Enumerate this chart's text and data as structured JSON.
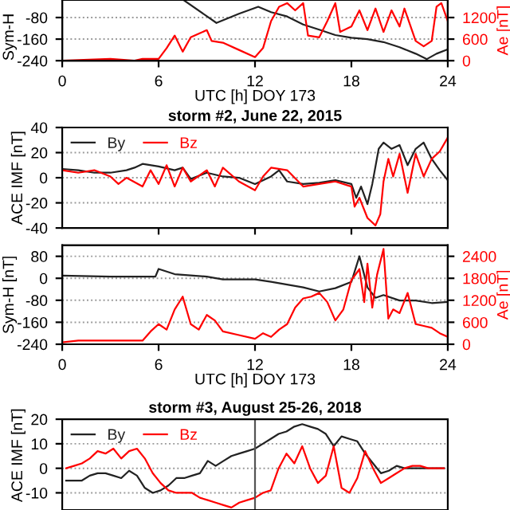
{
  "chart_data": [
    {
      "type": "line",
      "xlabel": "UTC [h] DOY 173",
      "ylabel": "Sym-H",
      "y2label": "Ae [nT]",
      "xlim": [
        0,
        24
      ],
      "xticks": [
        0,
        6,
        12,
        18,
        24
      ],
      "ylim": [
        -240,
        -15
      ],
      "yticks": [
        -240,
        -160,
        -80
      ],
      "y2lim": [
        0,
        1687.5
      ],
      "y2ticks": [
        0,
        600,
        1200
      ],
      "grid": "y",
      "legend": false,
      "series": [
        {
          "color": "#222222",
          "x": [
            7.6,
            9.6,
            11,
            12.2,
            13,
            14,
            15,
            16,
            17,
            18,
            19,
            20,
            21,
            22,
            22.7,
            23.3,
            24
          ],
          "values": [
            -17,
            -100,
            -66,
            -40,
            -60,
            -76,
            -106,
            -125,
            -145,
            -155,
            -160,
            -171,
            -190,
            -214,
            -234,
            -214,
            -198
          ]
        },
        {
          "color": "#ff0000",
          "axis": "y2",
          "x": [
            0,
            3,
            4.5,
            5,
            6,
            6.5,
            7,
            7.5,
            8,
            8.5,
            9,
            9.3,
            10,
            11,
            12,
            12.5,
            13,
            13.5,
            14,
            14.5,
            15,
            15.3,
            16,
            16.5,
            17,
            17.3,
            18,
            18.5,
            19,
            19.5,
            20,
            20.5,
            21,
            21.3,
            22,
            22.5,
            23,
            23.3,
            23.6,
            24
          ],
          "values": [
            0,
            50,
            0,
            50,
            50,
            350,
            700,
            250,
            650,
            750,
            850,
            550,
            500,
            300,
            100,
            350,
            1100,
            1500,
            1600,
            1400,
            1600,
            700,
            650,
            1100,
            1600,
            800,
            950,
            1400,
            850,
            1450,
            800,
            1400,
            950,
            1450,
            550,
            400,
            550,
            1500,
            1600,
            1100
          ]
        }
      ]
    },
    {
      "type": "line",
      "title": "storm #2, June 22, 2015",
      "ylabel": "ACE IMF [nT]",
      "xlim": [
        0,
        24
      ],
      "xticks": [
        {
          "value": 6,
          "label": null
        },
        {
          "value": 12,
          "label": null
        },
        {
          "value": 18,
          "label": null
        }
      ],
      "ylim": [
        -40,
        40
      ],
      "yticks": [
        -40,
        -20,
        0,
        20,
        40
      ],
      "tick_labels": "y",
      "grid": "y",
      "legend": "top left",
      "series": [
        {
          "name": "By",
          "color": "#222222",
          "x": [
            0,
            1,
            2,
            3,
            4,
            4.5,
            5,
            6,
            7,
            7.5,
            8,
            9,
            10,
            11,
            12,
            13,
            13.5,
            14,
            15,
            16,
            17,
            18,
            18.3,
            18.6,
            19,
            19.3,
            19.7,
            20,
            20.5,
            21,
            21.5,
            22,
            22.5,
            23,
            23.5,
            24
          ],
          "values": [
            7,
            6,
            4,
            4,
            6,
            8,
            11,
            9,
            6,
            8,
            -1,
            4,
            1,
            0,
            -5,
            1,
            6,
            -3,
            -5,
            -4,
            -2,
            -5,
            -16,
            -7,
            -21,
            -5,
            23,
            28,
            23,
            26,
            10,
            23,
            28,
            15,
            6,
            -2
          ]
        },
        {
          "name": "Bz",
          "color": "#ff0000",
          "x": [
            0,
            1,
            2,
            3,
            3.5,
            4,
            5,
            5.5,
            6,
            6.5,
            7,
            7.5,
            8,
            9,
            9.5,
            10,
            11,
            12,
            12.5,
            13,
            14,
            15,
            16,
            17,
            18,
            18.2,
            18.5,
            19,
            19.5,
            19.8,
            20,
            20.3,
            20.6,
            21,
            21.5,
            22,
            22.5,
            23,
            23.5,
            24
          ],
          "values": [
            6,
            4,
            6,
            1,
            -5,
            0,
            -7,
            6,
            -5,
            10,
            -7,
            8,
            -3,
            6,
            -7,
            8,
            -3,
            -10,
            1,
            8,
            6,
            -7,
            -5,
            -3,
            -7,
            -23,
            -16,
            -32,
            -38,
            -29,
            -3,
            15,
            1,
            19,
            -12,
            19,
            1,
            15,
            21,
            32
          ]
        }
      ]
    },
    {
      "type": "line",
      "xlabel": "UTC [h] DOY 173",
      "ylabel": "Sym-H [nT]",
      "y2label": "Ae [nT]",
      "xlim": [
        0,
        24
      ],
      "xticks": [
        0,
        6,
        12,
        18,
        24
      ],
      "ylim": [
        -240,
        120
      ],
      "yticks": [
        -240,
        -160,
        -80,
        0,
        80
      ],
      "y2lim": [
        0,
        2700
      ],
      "y2ticks": [
        0,
        600,
        1200,
        1800,
        2400
      ],
      "grid": "y",
      "legend": false,
      "series": [
        {
          "color": "#222222",
          "x": [
            0,
            3,
            5.8,
            6,
            7,
            9,
            10,
            12,
            13,
            14,
            15,
            16,
            17,
            18,
            18.5,
            19,
            19.5,
            20,
            21,
            22,
            23,
            24
          ],
          "values": [
            10,
            6,
            6,
            34,
            15,
            6,
            -4,
            -4,
            -13,
            -23,
            -33,
            -48,
            -36,
            -13,
            80,
            -33,
            -71,
            -61,
            -81,
            -81,
            -90,
            -86
          ]
        },
        {
          "color": "#ff0000",
          "axis": "y2",
          "x": [
            0,
            1,
            3,
            5,
            5.5,
            6,
            6.5,
            7,
            7.5,
            8,
            8.5,
            9,
            9.5,
            10,
            11,
            12,
            12.5,
            13,
            13.5,
            14,
            14.5,
            15,
            15.5,
            16,
            16.5,
            17,
            17.5,
            18,
            18.5,
            18.8,
            19,
            19.3,
            19.6,
            20,
            20.3,
            20.6,
            21,
            21.5,
            22,
            22.5,
            23,
            23.5,
            24
          ],
          "values": [
            50,
            100,
            100,
            100,
            350,
            550,
            400,
            950,
            1300,
            550,
            400,
            800,
            650,
            350,
            250,
            150,
            300,
            200,
            400,
            550,
            1000,
            1250,
            1300,
            1400,
            1150,
            650,
            950,
            1750,
            2050,
            1150,
            2200,
            1000,
            1900,
            2600,
            700,
            950,
            850,
            1400,
            550,
            500,
            450,
            300,
            200
          ]
        }
      ]
    },
    {
      "type": "line",
      "title": "storm #3, August 25-26, 2018",
      "ylabel": "ACE IMF [nT]",
      "categories": [
        null,
        null,
        null,
        null,
        null,
        null,
        null,
        null,
        null,
        null,
        null,
        null,
        null,
        null,
        null,
        null,
        null,
        null,
        null,
        null,
        null,
        null,
        null,
        null,
        null,
        null,
        null,
        null,
        null,
        null,
        null,
        null,
        null,
        null,
        null,
        null,
        null,
        null,
        null,
        null,
        null,
        null,
        null,
        null,
        null,
        null,
        null,
        null,
        null
      ],
      "ylim": [
        -17,
        20
      ],
      "yticks": [
        -10,
        0,
        10,
        20
      ],
      "grid": "y",
      "legend": "top left",
      "series": [
        {
          "name": "By",
          "color": "#222222",
          "values": [
            -5,
            -5,
            -5,
            -3,
            -2,
            -2,
            -3,
            -4,
            -1,
            -3,
            -8,
            -10,
            -9,
            -7,
            -4,
            -4,
            -3,
            -2,
            3,
            1,
            3,
            5,
            6,
            7,
            8,
            10,
            12,
            14,
            15,
            17,
            18,
            17,
            16,
            14,
            9,
            13,
            12,
            11,
            6,
            2,
            -2,
            -1,
            1,
            0,
            0,
            0,
            0,
            0,
            0
          ]
        },
        {
          "name": "Bz",
          "color": "#ff0000",
          "values": [
            0,
            1,
            2,
            4,
            7,
            6,
            8,
            4,
            7,
            8,
            4,
            -2,
            -6,
            -9,
            -10,
            -10,
            -10,
            -12,
            -13,
            -14,
            -15,
            -16,
            -14,
            -13,
            -12,
            -10,
            -9,
            0,
            6,
            2,
            9,
            0,
            -6,
            -3,
            9,
            -8,
            -10,
            -4,
            7,
            0,
            -6,
            -4,
            -2,
            0,
            1,
            1,
            0,
            0,
            0
          ]
        }
      ]
    }
  ]
}
